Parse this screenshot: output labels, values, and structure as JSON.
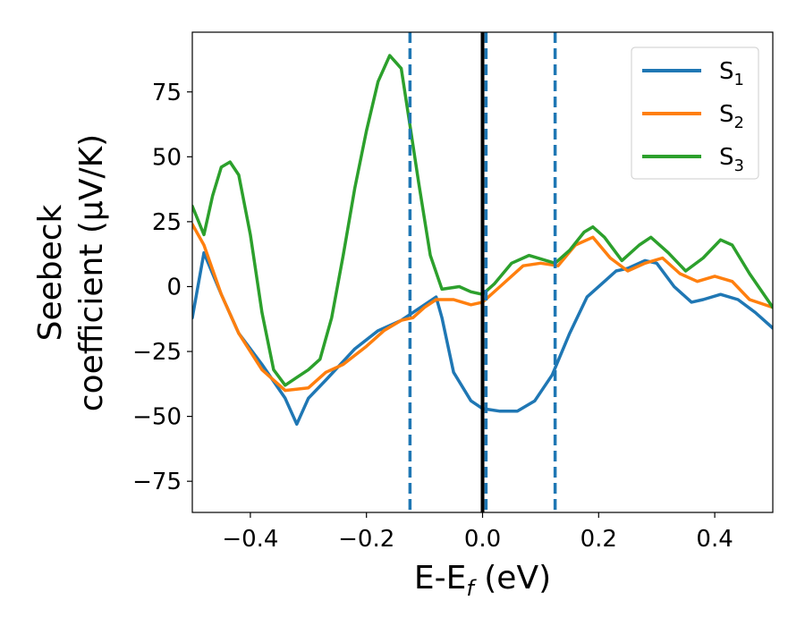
{
  "chart_data": {
    "type": "line",
    "xlabel": "E-E_f (eV)",
    "ylabel": "Seebeck coefficient (μV/K)",
    "xlim": [
      -0.5,
      0.5
    ],
    "ylim": [
      -87,
      98
    ],
    "x_ticks": [
      -0.4,
      -0.2,
      0.0,
      0.2,
      0.4
    ],
    "x_tick_labels": [
      "−0.4",
      "−0.2",
      "0.0",
      "0.2",
      "0.4"
    ],
    "y_ticks": [
      75,
      50,
      25,
      0,
      -25,
      -50,
      -75
    ],
    "y_tick_labels": [
      "75",
      "50",
      "25",
      "0",
      "−25",
      "−50",
      "−75"
    ],
    "grid": false,
    "legend_position": "top-right",
    "vlines": [
      {
        "x": -0.125,
        "style": "dashed",
        "color": "#1f77b4"
      },
      {
        "x": 0.0,
        "style": "solid",
        "color": "#000000"
      },
      {
        "x": 0.006,
        "style": "dashed",
        "color": "#1f77b4"
      },
      {
        "x": 0.125,
        "style": "dashed",
        "color": "#1f77b4"
      }
    ],
    "series": [
      {
        "name": "S1",
        "color": "#1f77b4",
        "x": [
          -0.5,
          -0.48,
          -0.45,
          -0.42,
          -0.38,
          -0.34,
          -0.32,
          -0.3,
          -0.27,
          -0.22,
          -0.18,
          -0.14,
          -0.1,
          -0.08,
          -0.07,
          -0.05,
          -0.02,
          0.0,
          0.03,
          0.06,
          0.09,
          0.12,
          0.15,
          0.18,
          0.21,
          0.23,
          0.25,
          0.28,
          0.3,
          0.33,
          0.36,
          0.38,
          0.41,
          0.44,
          0.47,
          0.5
        ],
        "y": [
          -12,
          13,
          -3,
          -18,
          -30,
          -43,
          -53,
          -43,
          -36,
          -24,
          -17,
          -13,
          -7,
          -4,
          -12,
          -33,
          -44,
          -47,
          -48,
          -48,
          -44,
          -34,
          -18,
          -4,
          2,
          6,
          7,
          10,
          9,
          0,
          -6,
          -5,
          -3,
          -5,
          -10,
          -16
        ]
      },
      {
        "name": "S2",
        "color": "#ff7f0e",
        "x": [
          -0.5,
          -0.48,
          -0.45,
          -0.42,
          -0.38,
          -0.34,
          -0.3,
          -0.27,
          -0.24,
          -0.2,
          -0.17,
          -0.14,
          -0.12,
          -0.1,
          -0.08,
          -0.05,
          -0.02,
          0.0,
          0.03,
          0.07,
          0.1,
          0.13,
          0.16,
          0.19,
          0.22,
          0.25,
          0.28,
          0.31,
          0.34,
          0.37,
          0.4,
          0.43,
          0.46,
          0.5
        ],
        "y": [
          24,
          16,
          -3,
          -18,
          -32,
          -40,
          -39,
          -33,
          -30,
          -23,
          -17,
          -13,
          -12,
          -8,
          -5,
          -5,
          -7,
          -6,
          0,
          8,
          9,
          8,
          16,
          19,
          11,
          6,
          9,
          11,
          5,
          2,
          4,
          2,
          -5,
          -8
        ]
      },
      {
        "name": "S3",
        "color": "#2ca02c",
        "x": [
          -0.5,
          -0.48,
          -0.465,
          -0.45,
          -0.435,
          -0.42,
          -0.4,
          -0.38,
          -0.36,
          -0.34,
          -0.32,
          -0.3,
          -0.28,
          -0.26,
          -0.24,
          -0.22,
          -0.2,
          -0.18,
          -0.16,
          -0.14,
          -0.125,
          -0.11,
          -0.09,
          -0.07,
          -0.04,
          -0.02,
          0.0,
          0.02,
          0.05,
          0.08,
          0.11,
          0.125,
          0.15,
          0.175,
          0.19,
          0.21,
          0.24,
          0.27,
          0.29,
          0.32,
          0.35,
          0.38,
          0.41,
          0.43,
          0.46,
          0.5
        ],
        "y": [
          31,
          20,
          35,
          46,
          48,
          43,
          20,
          -10,
          -32,
          -38,
          -35,
          -32,
          -28,
          -12,
          12,
          38,
          60,
          79,
          89,
          84,
          62,
          40,
          12,
          -1,
          0,
          -2,
          -3,
          1,
          9,
          12,
          10,
          9,
          14,
          21,
          23,
          19,
          10,
          16,
          19,
          13,
          6,
          11,
          18,
          16,
          5,
          -8
        ]
      }
    ]
  }
}
